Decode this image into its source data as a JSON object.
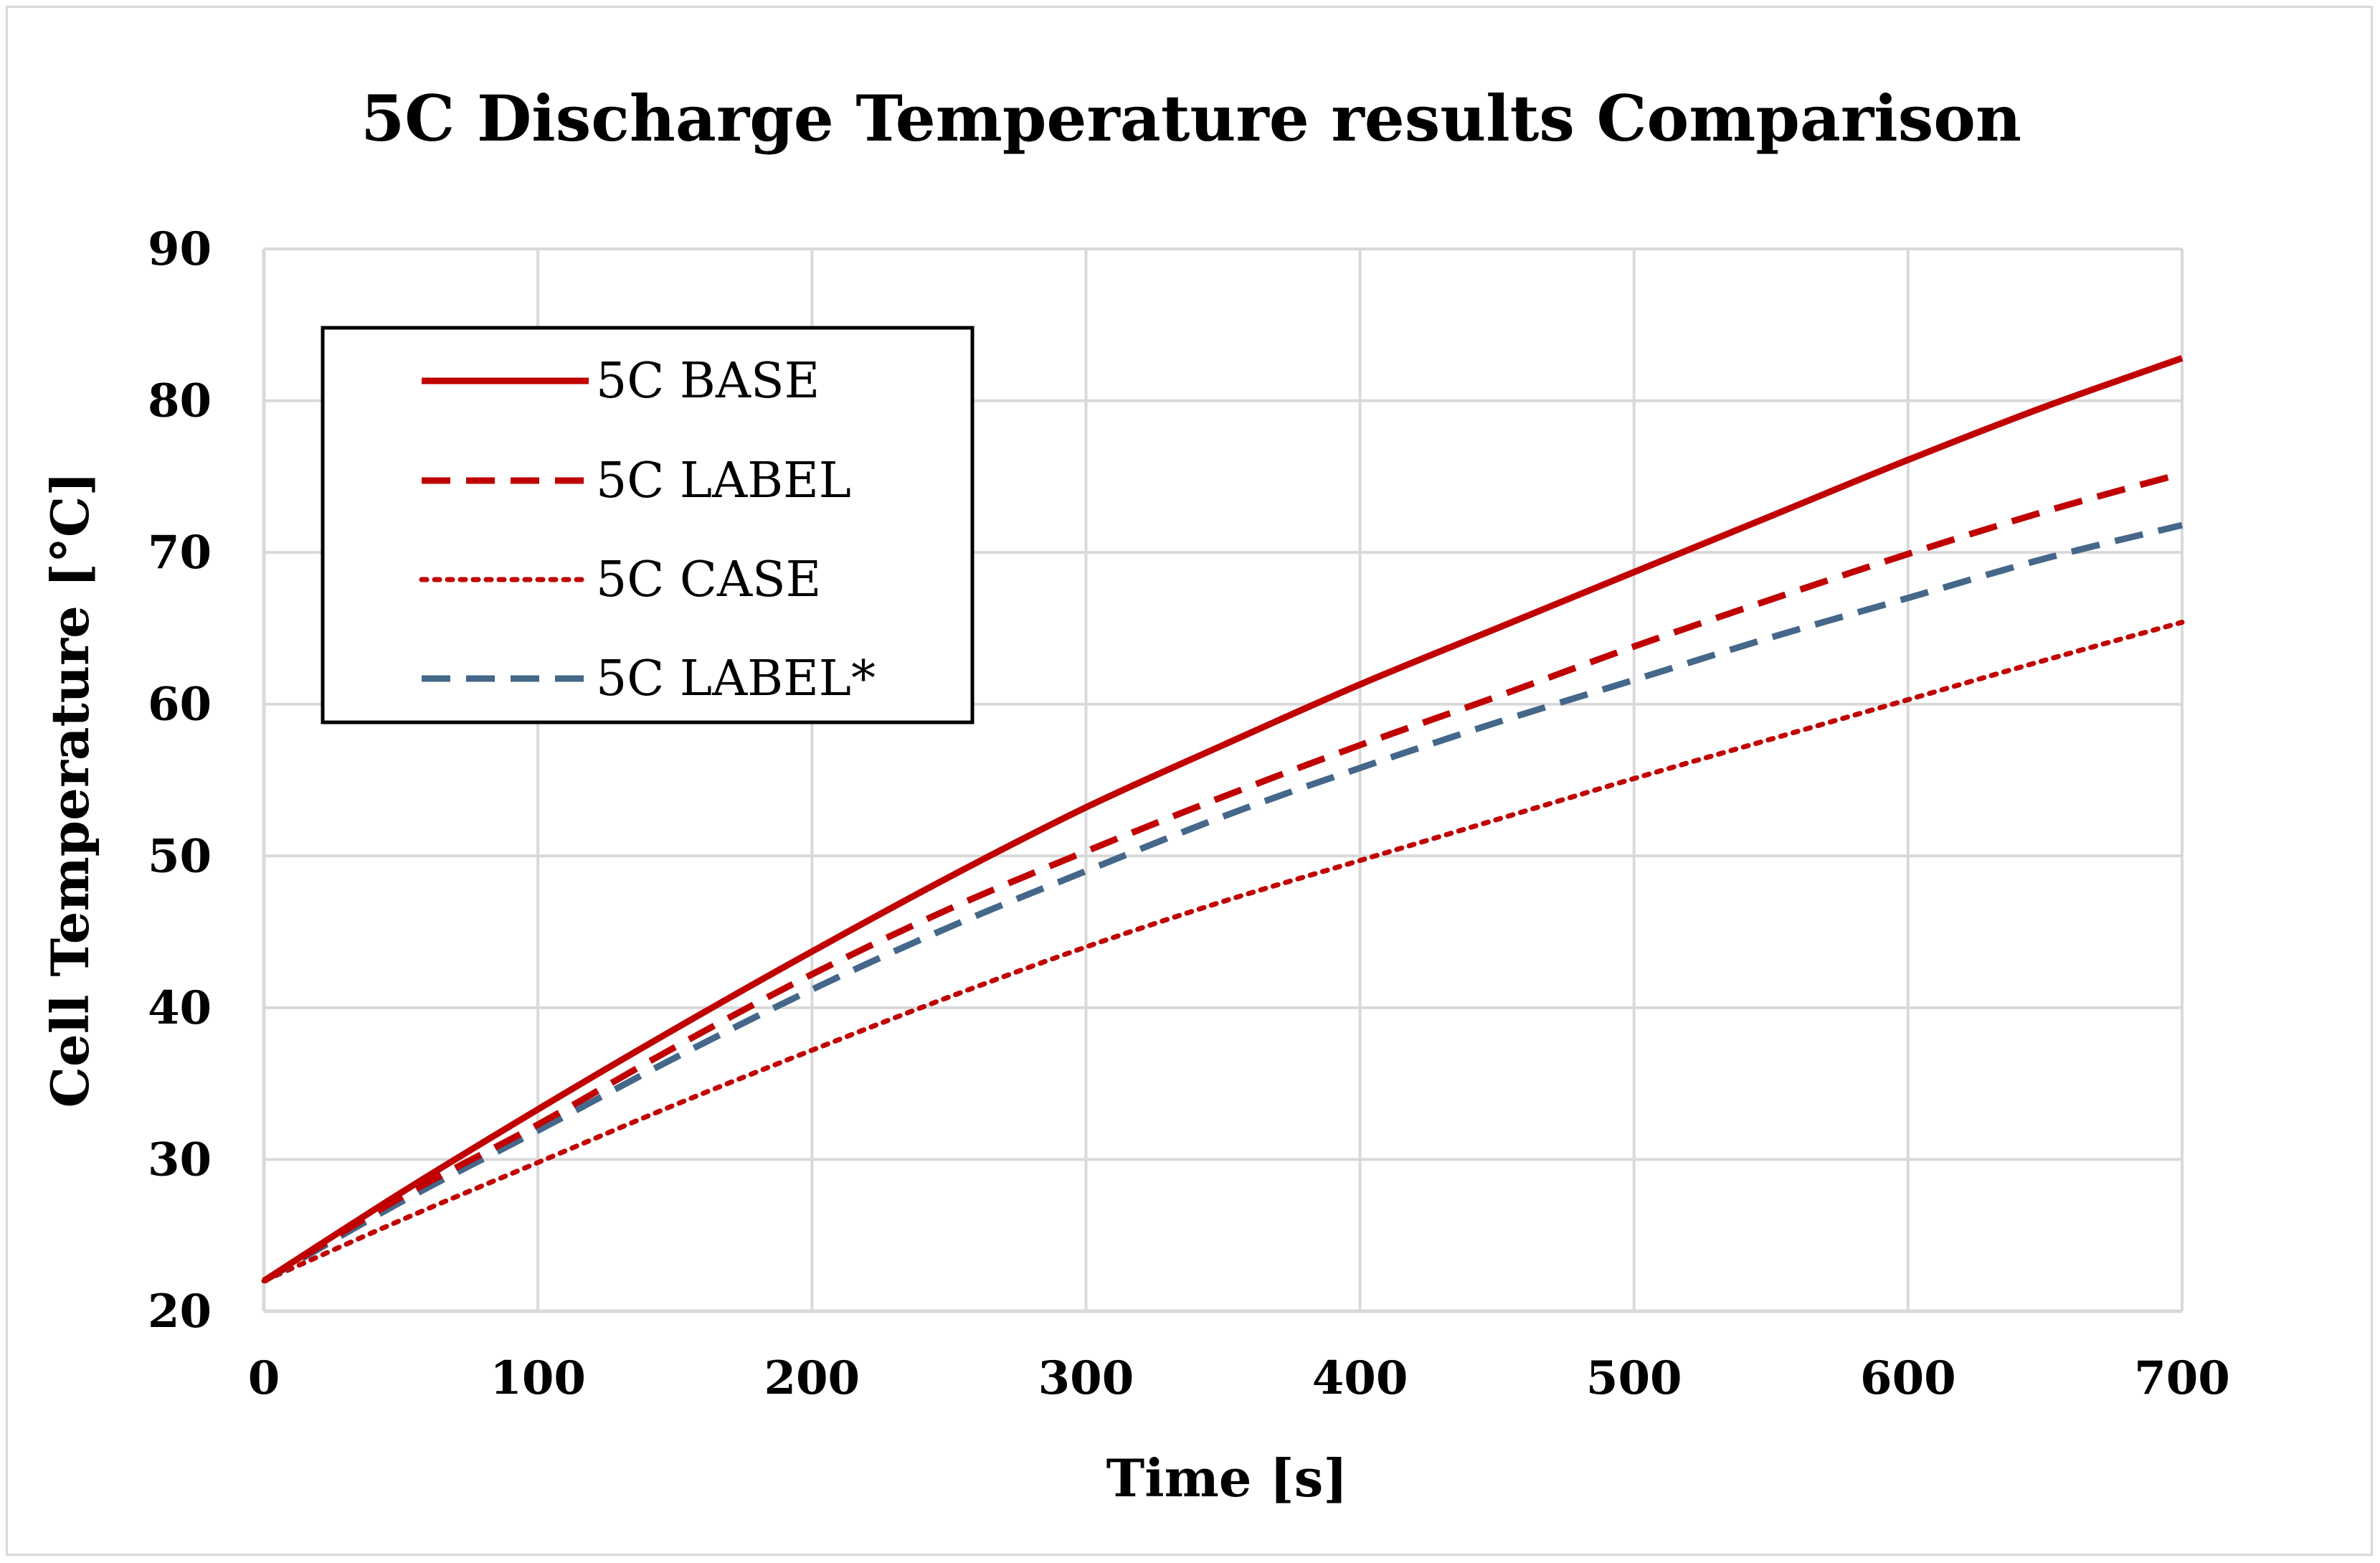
{
  "chart_data": {
    "type": "line",
    "title": "5C Discharge Temperature results Comparison",
    "xlabel": "Time [s]",
    "ylabel": "Cell Temperature [°C]",
    "xlim": [
      0,
      700
    ],
    "ylim": [
      20,
      90
    ],
    "xticks": [
      0,
      100,
      200,
      300,
      400,
      500,
      600,
      700
    ],
    "yticks": [
      20,
      30,
      40,
      50,
      60,
      70,
      80,
      90
    ],
    "grid": true,
    "legend_position": "top-left",
    "x": [
      0,
      50,
      100,
      150,
      200,
      250,
      300,
      350,
      400,
      450,
      500,
      550,
      600,
      650,
      700
    ],
    "series": [
      {
        "name": "5C BASE",
        "color": "#c00000",
        "style": "solid",
        "values": [
          22.0,
          27.8,
          33.3,
          38.6,
          43.7,
          48.6,
          53.2,
          57.3,
          61.3,
          65.0,
          68.7,
          72.4,
          76.1,
          79.6,
          82.8
        ]
      },
      {
        "name": "5C LABEL",
        "color": "#c00000",
        "style": "dashed",
        "values": [
          22.0,
          27.5,
          32.3,
          37.4,
          42.2,
          46.5,
          50.3,
          53.9,
          57.3,
          60.5,
          63.8,
          66.9,
          69.9,
          72.7,
          75.2
        ]
      },
      {
        "name": "5C CASE",
        "color": "#c00000",
        "style": "dotted",
        "values": [
          22.0,
          26.0,
          29.8,
          33.6,
          37.2,
          40.7,
          44.0,
          47.0,
          49.7,
          52.4,
          55.1,
          57.7,
          60.3,
          62.9,
          65.4
        ]
      },
      {
        "name": "5C LABEL*",
        "color": "#44678a",
        "style": "dashed",
        "values": [
          22.0,
          27.2,
          31.9,
          36.7,
          41.2,
          45.3,
          49.0,
          52.6,
          55.8,
          58.8,
          61.6,
          64.4,
          67.0,
          69.6,
          71.8
        ]
      }
    ]
  }
}
